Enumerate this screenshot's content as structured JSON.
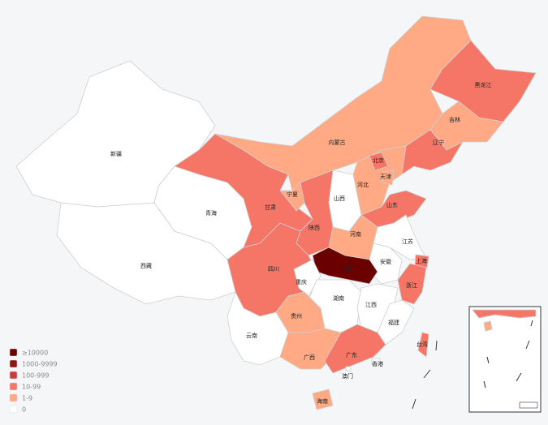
{
  "map": {
    "regions": [
      {
        "name": "新疆",
        "color": "#ffffff"
      },
      {
        "name": "西藏",
        "color": "#ffffff"
      },
      {
        "name": "青海",
        "color": "#ffffff"
      },
      {
        "name": "甘肃",
        "color": "#f57567"
      },
      {
        "name": "内蒙古",
        "color": "#ffaa85"
      },
      {
        "name": "黑龙江",
        "color": "#f57567"
      },
      {
        "name": "吉林",
        "color": "#ffaa85"
      },
      {
        "name": "辽宁",
        "color": "#f57567"
      },
      {
        "name": "河北",
        "color": "#ffaa85"
      },
      {
        "name": "北京",
        "color": "#f57567"
      },
      {
        "name": "天津",
        "color": "#ffaa85"
      },
      {
        "name": "山西",
        "color": "#ffffff"
      },
      {
        "name": "宁夏",
        "color": "#ffaa85"
      },
      {
        "name": "陕西",
        "color": "#f57567"
      },
      {
        "name": "山东",
        "color": "#f57567"
      },
      {
        "name": "河南",
        "color": "#ffaa85"
      },
      {
        "name": "江苏",
        "color": "#ffffff"
      },
      {
        "name": "安徽",
        "color": "#ffffff"
      },
      {
        "name": "上海",
        "color": "#f57567"
      },
      {
        "name": "湖北",
        "color": "#6b0000"
      },
      {
        "name": "四川",
        "color": "#f57567"
      },
      {
        "name": "重庆",
        "color": "#ffffff"
      },
      {
        "name": "浙江",
        "color": "#f57567"
      },
      {
        "name": "湖南",
        "color": "#ffffff"
      },
      {
        "name": "江西",
        "color": "#ffffff"
      },
      {
        "name": "福建",
        "color": "#ffffff"
      },
      {
        "name": "贵州",
        "color": "#ffaa85"
      },
      {
        "name": "云南",
        "color": "#ffffff"
      },
      {
        "name": "广西",
        "color": "#ffaa85"
      },
      {
        "name": "广东",
        "color": "#f57567"
      },
      {
        "name": "香港",
        "color": "#ffffff"
      },
      {
        "name": "澳门",
        "color": "#ffffff"
      },
      {
        "name": "海南",
        "color": "#ffaa85"
      },
      {
        "name": "台湾",
        "color": "#f57567"
      }
    ],
    "legend": [
      {
        "label": "≥10000",
        "color": "#6b0000"
      },
      {
        "label": "1000-9999",
        "color": "#8f1515"
      },
      {
        "label": "100-999",
        "color": "#c93c3c"
      },
      {
        "label": "10-99",
        "color": "#f57567"
      },
      {
        "label": "1-9",
        "color": "#ffaa85"
      },
      {
        "label": "0",
        "color": "#ffffff"
      }
    ]
  }
}
